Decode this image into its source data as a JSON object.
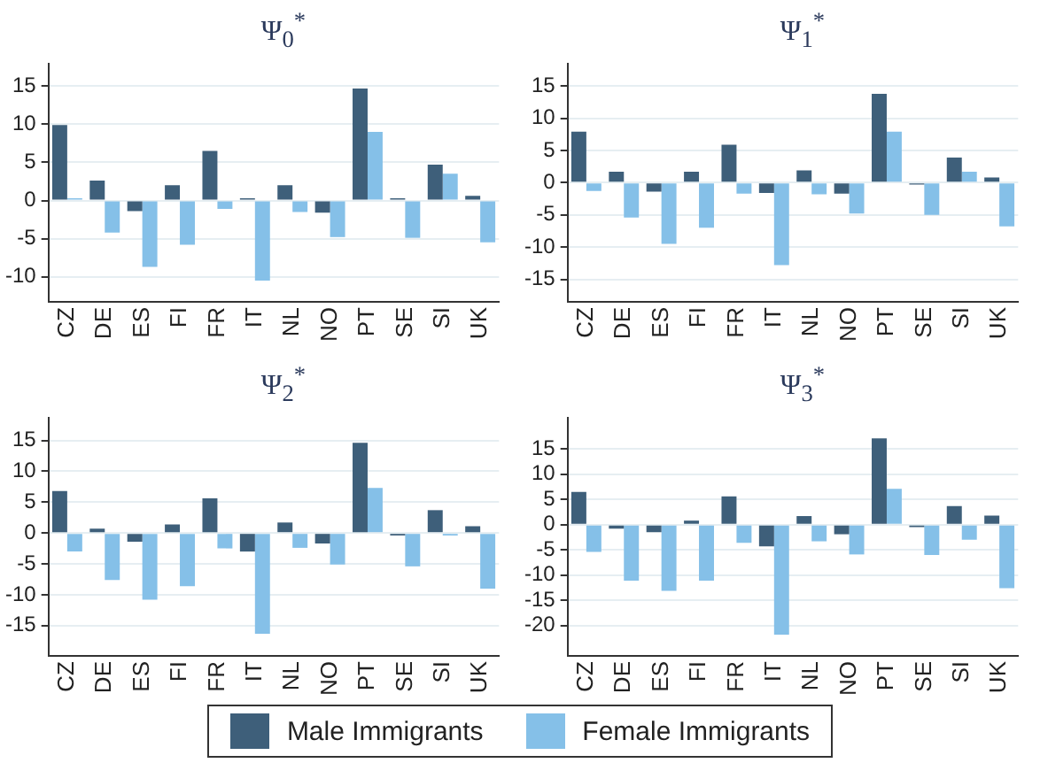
{
  "chart_data": [
    {
      "type": "bar",
      "title": "Ψ$_{0}$$^{*}$",
      "categories": [
        "CZ",
        "DE",
        "ES",
        "FI",
        "FR",
        "IT",
        "NL",
        "NO",
        "PT",
        "SE",
        "SI",
        "UK"
      ],
      "ylim": [
        -13.3,
        17.9
      ],
      "yticks": [
        -10,
        -5,
        0,
        5,
        10,
        15
      ],
      "grid": "y",
      "legend": "bottom",
      "series": [
        {
          "name": "Male Immigrants",
          "color": "#3e5f7a",
          "values": [
            9.9,
            2.6,
            -1.4,
            2,
            6.5,
            0.3,
            2,
            -1.6,
            14.7,
            0.3,
            4.7,
            0.6
          ]
        },
        {
          "name": "Female Immigrants",
          "color": "#85c0e8",
          "values": [
            0.3,
            -4.2,
            -8.7,
            -5.8,
            -1.1,
            -10.5,
            -1.5,
            -4.8,
            9,
            -4.9,
            3.5,
            -5.5
          ]
        }
      ]
    },
    {
      "type": "bar",
      "title": "Ψ$_{1}$$^{*}$",
      "categories": [
        "CZ",
        "DE",
        "ES",
        "FI",
        "FR",
        "IT",
        "NL",
        "NO",
        "PT",
        "SE",
        "SI",
        "UK"
      ],
      "ylim": [
        -18.5,
        18.4
      ],
      "yticks": [
        -15,
        -10,
        -5,
        0,
        5,
        10,
        15
      ],
      "grid": "y",
      "series": [
        {
          "color": "#3e5f7a",
          "values": [
            7.9,
            1.7,
            -1.4,
            1.7,
            5.9,
            -1.6,
            1.9,
            -1.7,
            13.8,
            -0.3,
            3.9,
            0.8
          ]
        },
        {
          "color": "#85c0e8",
          "values": [
            -1.3,
            -5.4,
            -9.5,
            -7,
            -1.7,
            -12.8,
            -1.8,
            -4.8,
            7.9,
            -5,
            1.7,
            -6.8
          ]
        }
      ]
    },
    {
      "type": "bar",
      "title": "Ψ$_{2}$$^{*}$",
      "categories": [
        "CZ",
        "DE",
        "ES",
        "FI",
        "FR",
        "IT",
        "NL",
        "NO",
        "PT",
        "SE",
        "SI",
        "UK"
      ],
      "ylim": [
        -19.9,
        18.6
      ],
      "yticks": [
        -15,
        -10,
        -5,
        0,
        5,
        10,
        15
      ],
      "grid": "y",
      "series": [
        {
          "color": "#3e5f7a",
          "values": [
            6.8,
            0.7,
            -1.4,
            1.4,
            5.6,
            -3,
            1.7,
            -1.7,
            14.6,
            -0.4,
            3.7,
            1.1
          ]
        },
        {
          "color": "#85c0e8",
          "values": [
            -3,
            -7.6,
            -10.8,
            -8.6,
            -2.5,
            -16.3,
            -2.4,
            -5.1,
            7.3,
            -5.4,
            -0.4,
            -9
          ]
        }
      ]
    },
    {
      "type": "bar",
      "title": "Ψ$_{3}$$^{*}$",
      "categories": [
        "CZ",
        "DE",
        "ES",
        "FI",
        "FR",
        "IT",
        "NL",
        "NO",
        "PT",
        "SE",
        "SI",
        "UK"
      ],
      "ylim": [
        -26,
        21.1
      ],
      "yticks": [
        -20,
        -15,
        -10,
        -5,
        0,
        5,
        10,
        15
      ],
      "grid": "y",
      "series": [
        {
          "color": "#3e5f7a",
          "values": [
            6.5,
            -0.8,
            -1.5,
            0.8,
            5.6,
            -4.3,
            1.7,
            -1.9,
            17.1,
            -0.5,
            3.7,
            1.8
          ]
        },
        {
          "color": "#85c0e8",
          "values": [
            -5.4,
            -11.1,
            -13.1,
            -11.1,
            -3.6,
            -21.8,
            -3.3,
            -5.9,
            7.1,
            -6,
            -3,
            -12.6
          ]
        }
      ]
    }
  ]
}
